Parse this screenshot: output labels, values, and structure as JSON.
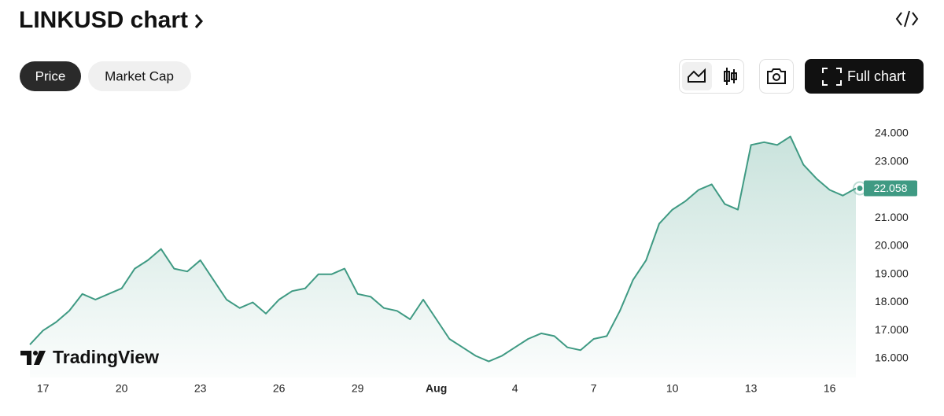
{
  "header": {
    "title": "LINKUSD chart"
  },
  "tabs": [
    "Price",
    "Market Cap"
  ],
  "buttons": {
    "full_chart": "Full chart"
  },
  "branding": "TradingView",
  "chart_data": {
    "type": "area",
    "categories": [
      null,
      "17",
      null,
      null,
      null,
      null,
      null,
      "20",
      null,
      null,
      null,
      null,
      null,
      "23",
      null,
      null,
      null,
      null,
      null,
      "26",
      null,
      null,
      null,
      null,
      null,
      "29",
      null,
      null,
      null,
      null,
      null,
      "Aug",
      null,
      null,
      null,
      null,
      null,
      "4",
      null,
      null,
      null,
      null,
      null,
      "7",
      null,
      null,
      null,
      null,
      null,
      "10",
      null,
      null,
      null,
      null,
      null,
      "13",
      null,
      null,
      null,
      null,
      null,
      "16",
      null,
      null
    ],
    "values": [
      16.5,
      17.0,
      17.3,
      17.7,
      18.3,
      18.1,
      18.3,
      18.5,
      19.2,
      19.5,
      19.9,
      19.2,
      19.1,
      19.5,
      18.8,
      18.1,
      17.8,
      18.0,
      17.6,
      18.1,
      18.4,
      18.5,
      19.0,
      19.0,
      19.2,
      18.3,
      18.2,
      17.8,
      17.7,
      17.4,
      18.1,
      17.4,
      16.7,
      16.4,
      16.1,
      15.9,
      16.1,
      16.4,
      16.7,
      16.9,
      16.8,
      16.4,
      16.3,
      16.7,
      16.8,
      17.7,
      18.8,
      19.5,
      20.8,
      21.3,
      21.6,
      22.0,
      22.2,
      21.5,
      21.3,
      23.6,
      23.7,
      23.6,
      23.9,
      22.9,
      22.4,
      22.0,
      21.8,
      22.058
    ],
    "color": "#3f9a83",
    "ylim": [
      15.33,
      24.84
    ],
    "yticks": [
      {
        "value": 16,
        "label": "16.000"
      },
      {
        "value": 17,
        "label": "17.000"
      },
      {
        "value": 18,
        "label": "18.000"
      },
      {
        "value": 19,
        "label": "19.000"
      },
      {
        "value": 20,
        "label": "20.000"
      },
      {
        "value": 21,
        "label": "21.000"
      },
      {
        "value": 22,
        "label": "22.000"
      },
      {
        "value": 23,
        "label": "23.000"
      },
      {
        "value": 24,
        "label": "24.000"
      }
    ],
    "grid": false
  }
}
